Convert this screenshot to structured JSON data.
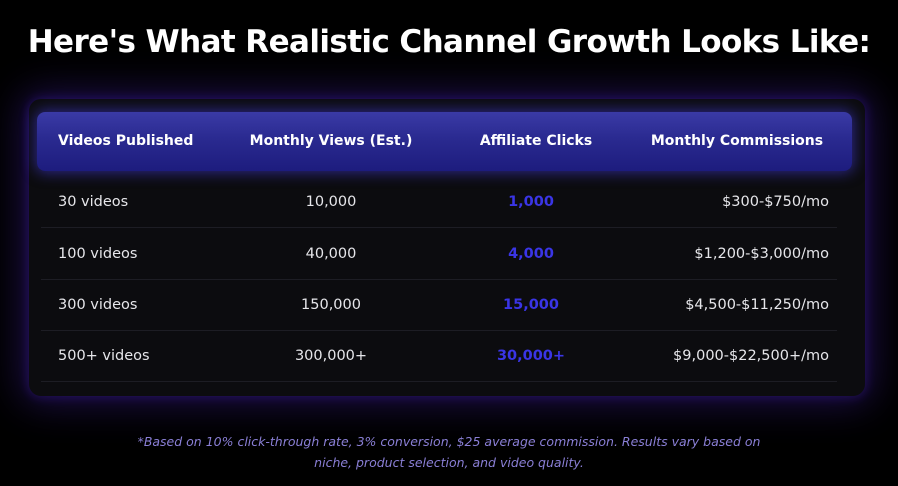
{
  "title": "Here's What Realistic Channel Growth Looks Like:",
  "table": {
    "headers": [
      "Videos Published",
      "Monthly Views (Est.)",
      "Affiliate Clicks",
      "Monthly Commissions"
    ],
    "rows": [
      [
        "30 videos",
        "10,000",
        "1,000",
        "$300-$750/mo"
      ],
      [
        "100 videos",
        "40,000",
        "4,000",
        "$1,200-$3,000/mo"
      ],
      [
        "300 videos",
        "150,000",
        "15,000",
        "$4,500-$11,250/mo"
      ],
      [
        "500+ videos",
        "300,000+",
        "30,000+",
        "$9,000-$22,500+/mo"
      ]
    ]
  },
  "footnote": {
    "line1": "*Based on 10% click-through rate, 3% conversion, $25 average commission. Results vary based on",
    "line2": "niche, product selection, and video quality."
  },
  "colors": {
    "background": "#000000",
    "header_gradient": "#2a2a90",
    "accent_clicks": "#3a35e6",
    "footnote": "#8a7fd6"
  }
}
